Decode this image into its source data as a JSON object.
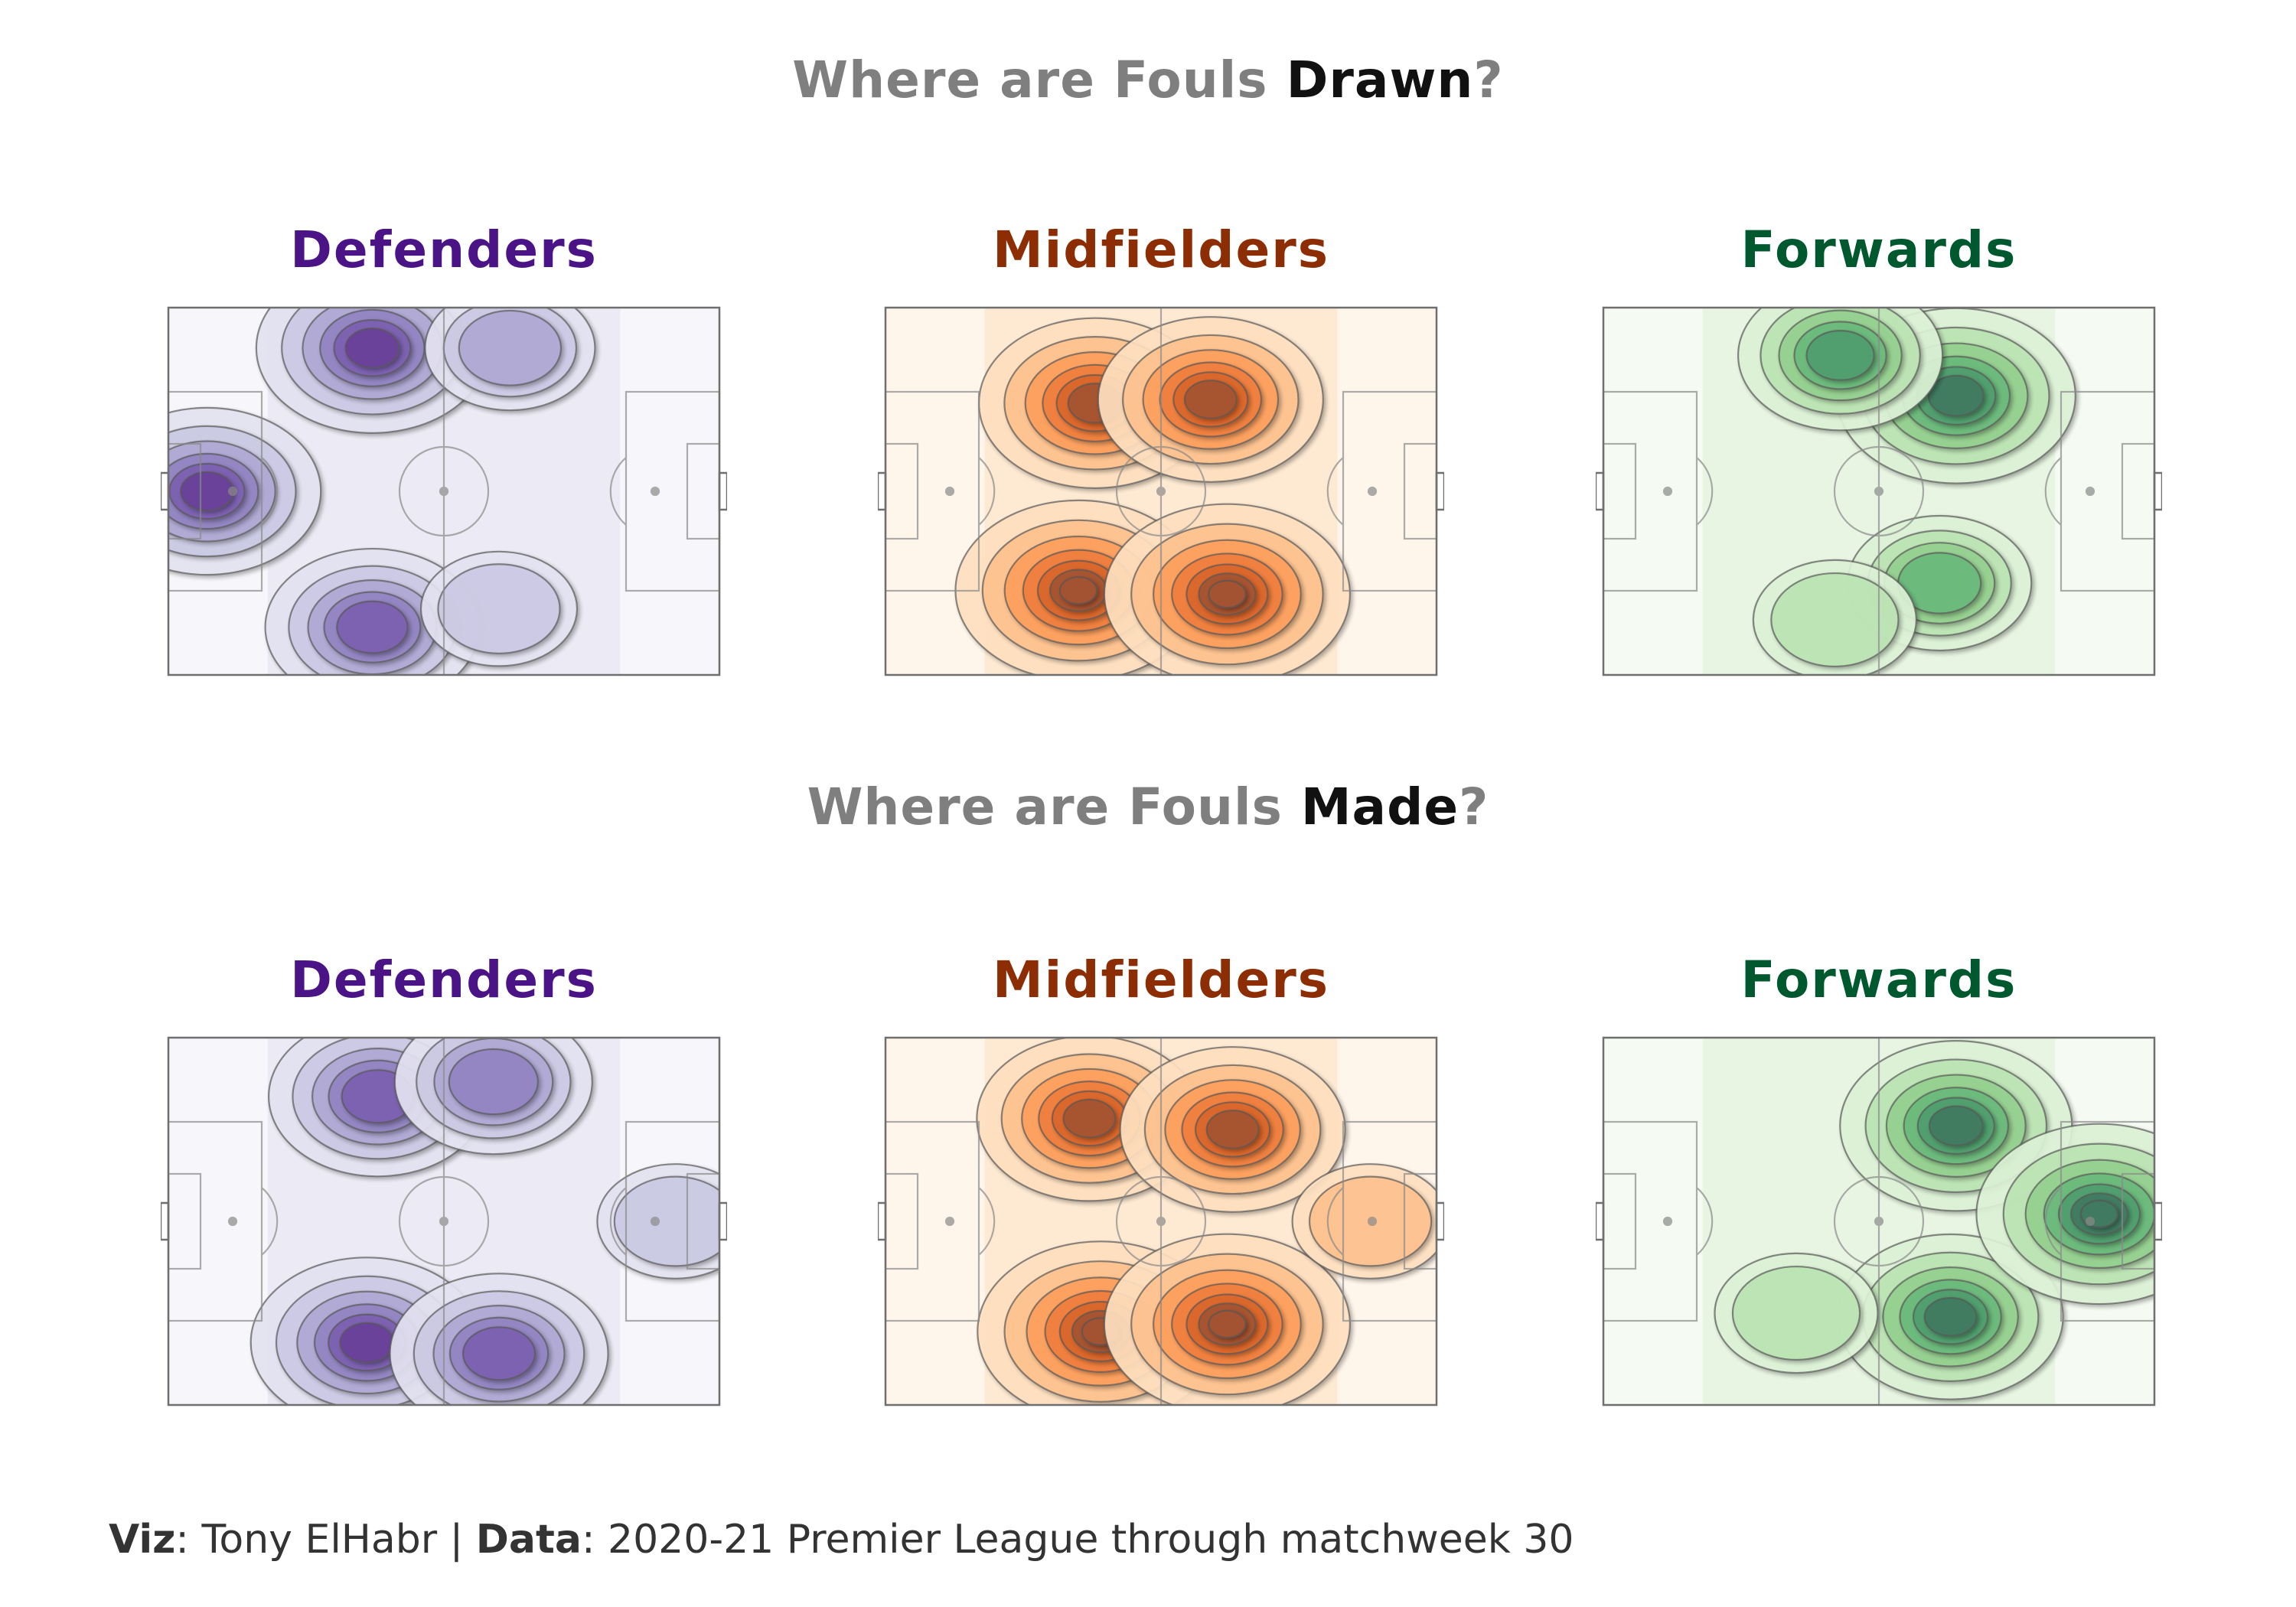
{
  "figure": {
    "section_drawn": {
      "prefix": "Where are Fouls ",
      "emphasis": "Drawn",
      "suffix": "?"
    },
    "section_made": {
      "prefix": "Where are Fouls ",
      "emphasis": "Made",
      "suffix": "?"
    }
  },
  "caption": {
    "viz_label": "Viz",
    "viz_sep": ": ",
    "viz_author": "Tony ElHabr",
    "separator": " | ",
    "data_label": "Data",
    "data_sep": ": ",
    "data_source": "2020-21 Premier League through matchweek 30"
  },
  "colors": {
    "defenders": "#4a1486",
    "midfielders": "#8c2d04",
    "forwards": "#00582f",
    "section_title_gray": "#7f7f7f",
    "pitch_line": "#8a8a8a"
  },
  "chart_data": [
    {
      "type": "heatmap",
      "subtype": "contour-density",
      "row": "Where are Fouls Drawn?",
      "title": "Defenders",
      "palette": "purples",
      "hotspots": [
        {
          "x": 37,
          "y": 89,
          "density": 0.85
        },
        {
          "x": 37,
          "y": 13,
          "density": 0.72
        },
        {
          "x": 7,
          "y": 50,
          "density": 0.82
        },
        {
          "x": 62,
          "y": 89,
          "density": 0.4
        },
        {
          "x": 60,
          "y": 18,
          "density": 0.3
        }
      ],
      "xlim": [
        0,
        100
      ],
      "ylim": [
        0,
        100
      ]
    },
    {
      "type": "heatmap",
      "subtype": "contour-density",
      "row": "Where are Fouls Drawn?",
      "title": "Midfielders",
      "palette": "oranges",
      "hotspots": [
        {
          "x": 38,
          "y": 74,
          "density": 0.85
        },
        {
          "x": 59,
          "y": 75,
          "density": 0.8
        },
        {
          "x": 35,
          "y": 23,
          "density": 0.95
        },
        {
          "x": 62,
          "y": 22,
          "density": 0.95
        }
      ],
      "xlim": [
        0,
        100
      ],
      "ylim": [
        0,
        100
      ]
    },
    {
      "type": "heatmap",
      "subtype": "contour-density",
      "row": "Where are Fouls Drawn?",
      "title": "Forwards",
      "palette": "greens",
      "hotspots": [
        {
          "x": 64,
          "y": 76,
          "density": 0.9
        },
        {
          "x": 43,
          "y": 87,
          "density": 0.65
        },
        {
          "x": 61,
          "y": 25,
          "density": 0.5
        },
        {
          "x": 42,
          "y": 15,
          "density": 0.35
        }
      ],
      "xlim": [
        0,
        100
      ],
      "ylim": [
        0,
        100
      ]
    },
    {
      "type": "heatmap",
      "subtype": "contour-density",
      "row": "Where are Fouls Made?",
      "title": "Defenders",
      "palette": "purples",
      "hotspots": [
        {
          "x": 38,
          "y": 84,
          "density": 0.75
        },
        {
          "x": 59,
          "y": 88,
          "density": 0.6
        },
        {
          "x": 36,
          "y": 17,
          "density": 0.85
        },
        {
          "x": 60,
          "y": 14,
          "density": 0.75
        },
        {
          "x": 92,
          "y": 50,
          "density": 0.3
        }
      ],
      "xlim": [
        0,
        100
      ],
      "ylim": [
        0,
        100
      ]
    },
    {
      "type": "heatmap",
      "subtype": "contour-density",
      "row": "Where are Fouls Made?",
      "title": "Midfielders",
      "palette": "oranges",
      "hotspots": [
        {
          "x": 37,
          "y": 78,
          "density": 0.8
        },
        {
          "x": 63,
          "y": 75,
          "density": 0.8
        },
        {
          "x": 39,
          "y": 20,
          "density": 0.95
        },
        {
          "x": 62,
          "y": 22,
          "density": 0.95
        },
        {
          "x": 88,
          "y": 50,
          "density": 0.3
        }
      ],
      "xlim": [
        0,
        100
      ],
      "ylim": [
        0,
        100
      ]
    },
    {
      "type": "heatmap",
      "subtype": "contour-density",
      "row": "Where are Fouls Made?",
      "title": "Forwards",
      "palette": "greens",
      "hotspots": [
        {
          "x": 64,
          "y": 76,
          "density": 0.85
        },
        {
          "x": 63,
          "y": 24,
          "density": 0.8
        },
        {
          "x": 90,
          "y": 52,
          "density": 0.95
        },
        {
          "x": 35,
          "y": 25,
          "density": 0.35
        }
      ],
      "xlim": [
        0,
        100
      ],
      "ylim": [
        0,
        100
      ]
    }
  ]
}
